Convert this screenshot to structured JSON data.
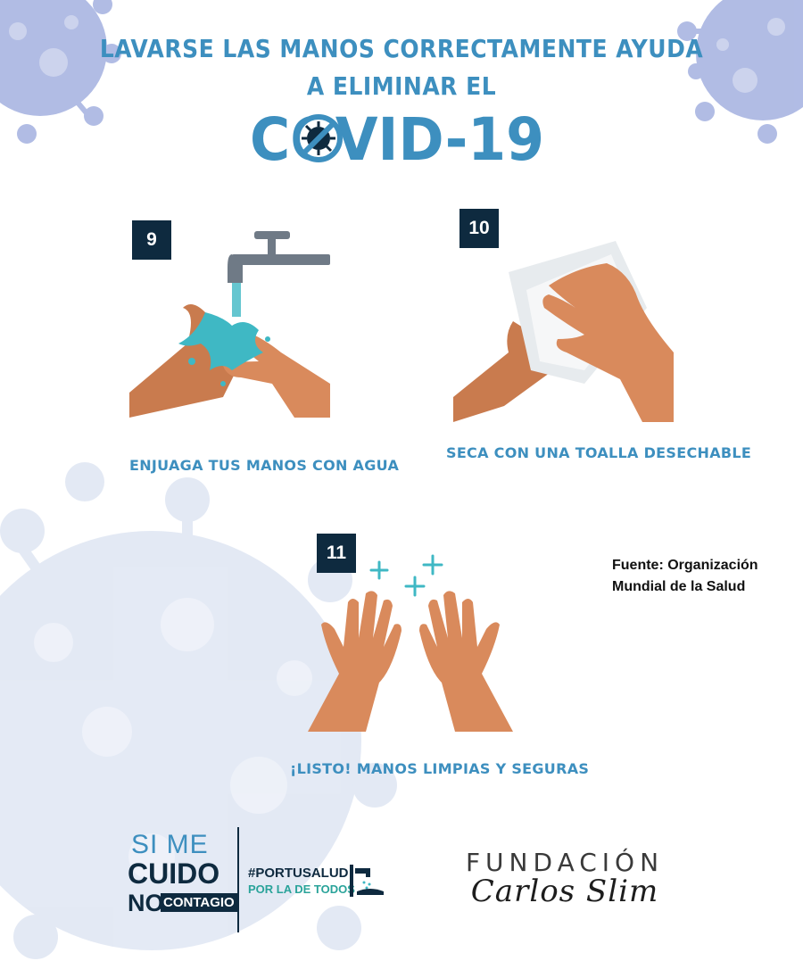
{
  "header": {
    "line1": "LAVARSE LAS MANOS CORRECTAMENTE AYUDA",
    "line2": "A ELIMINAR EL",
    "covid_title": "COVID-19"
  },
  "steps": [
    {
      "number": "9",
      "caption": "ENJUAGA TUS MANOS CON AGUA"
    },
    {
      "number": "10",
      "caption": "SECA CON UNA TOALLA DESECHABLE"
    },
    {
      "number": "11",
      "caption": "¡LISTO! MANOS LIMPIAS Y SEGURAS"
    }
  ],
  "source": {
    "line1": "Fuente: Organización",
    "line2": "Mundial de la Salud"
  },
  "logos": {
    "si_me": "SI ME",
    "cuido": "CUIDO",
    "no": "NO",
    "contagio": "CONTAGIO",
    "hashtag": "#PORTUSALUD",
    "tagline": "POR LA DE TODOS",
    "fundacion": "FUNDACIÓN",
    "carlos_slim": "Carlos Slim"
  },
  "colors": {
    "headline": "#3d8fbf",
    "badge": "#0e2a3f",
    "skin": "#d98a5c",
    "water": "#3fb8c4",
    "virus": "#b9c3e6"
  },
  "icons": [
    "virus-icon",
    "faucet-icon",
    "sparkle-icon",
    "covid-virus-icon",
    "hand-wash-icon"
  ]
}
